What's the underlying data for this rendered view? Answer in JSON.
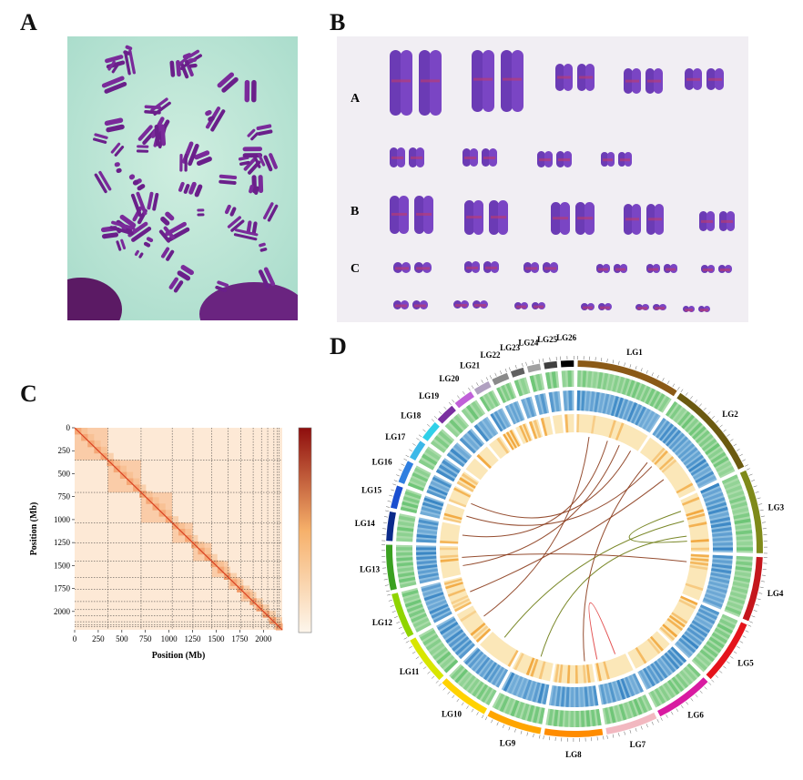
{
  "panels": {
    "A": {
      "label": "A"
    },
    "B": {
      "label": "B",
      "row_labels": [
        "A",
        "B",
        "C"
      ]
    },
    "C": {
      "label": "C",
      "xlabel": "Position (Mb)",
      "ylabel": "Position (Mb)",
      "xticks": [
        "0",
        "250",
        "500",
        "750",
        "1000",
        "1250",
        "1500",
        "1750",
        "2000"
      ],
      "yticks": [
        "0",
        "250",
        "500",
        "750",
        "1000",
        "1250",
        "1500",
        "1750",
        "2000"
      ],
      "heat_colors": {
        "low": "#fdf6ec",
        "mid": "#f6b06a",
        "high": "#8e0d0d"
      }
    },
    "D": {
      "label": "D",
      "linkage_groups": [
        {
          "name": "LG1",
          "color": "#8b5a17"
        },
        {
          "name": "LG2",
          "color": "#6b5a10"
        },
        {
          "name": "LG3",
          "color": "#7f8a1a"
        },
        {
          "name": "LG4",
          "color": "#c4161c"
        },
        {
          "name": "LG5",
          "color": "#e4141b"
        },
        {
          "name": "LG6",
          "color": "#d81ba1"
        },
        {
          "name": "LG7",
          "color": "#f2b8c0"
        },
        {
          "name": "LG8",
          "color": "#ff8c00"
        },
        {
          "name": "LG9",
          "color": "#ffa500"
        },
        {
          "name": "LG10",
          "color": "#ffd200"
        },
        {
          "name": "LG11",
          "color": "#d8e600"
        },
        {
          "name": "LG12",
          "color": "#8fd400"
        },
        {
          "name": "LG13",
          "color": "#3aa020"
        },
        {
          "name": "LG14",
          "color": "#0a2a8a"
        },
        {
          "name": "LG15",
          "color": "#1b4fd0"
        },
        {
          "name": "LG16",
          "color": "#2f7fe0"
        },
        {
          "name": "LG17",
          "color": "#3cb8e8"
        },
        {
          "name": "LG18",
          "color": "#30d0e8"
        },
        {
          "name": "LG19",
          "color": "#7a2fa0"
        },
        {
          "name": "LG20",
          "color": "#c060d8"
        },
        {
          "name": "LG21",
          "color": "#b0a0c0"
        },
        {
          "name": "LG22",
          "color": "#8a8a8a"
        },
        {
          "name": "LG23",
          "color": "#606060"
        },
        {
          "name": "LG24",
          "color": "#a0a0a0"
        },
        {
          "name": "LG25",
          "color": "#404040"
        },
        {
          "name": "LG26",
          "color": "#000000"
        }
      ],
      "track_colors": {
        "green": "#66c270",
        "blue": "#3a86c4",
        "orange": "#f0a030",
        "link_brown": "#8a3a1a",
        "link_olive": "#6a7a10",
        "link_red": "#e04040"
      }
    }
  }
}
